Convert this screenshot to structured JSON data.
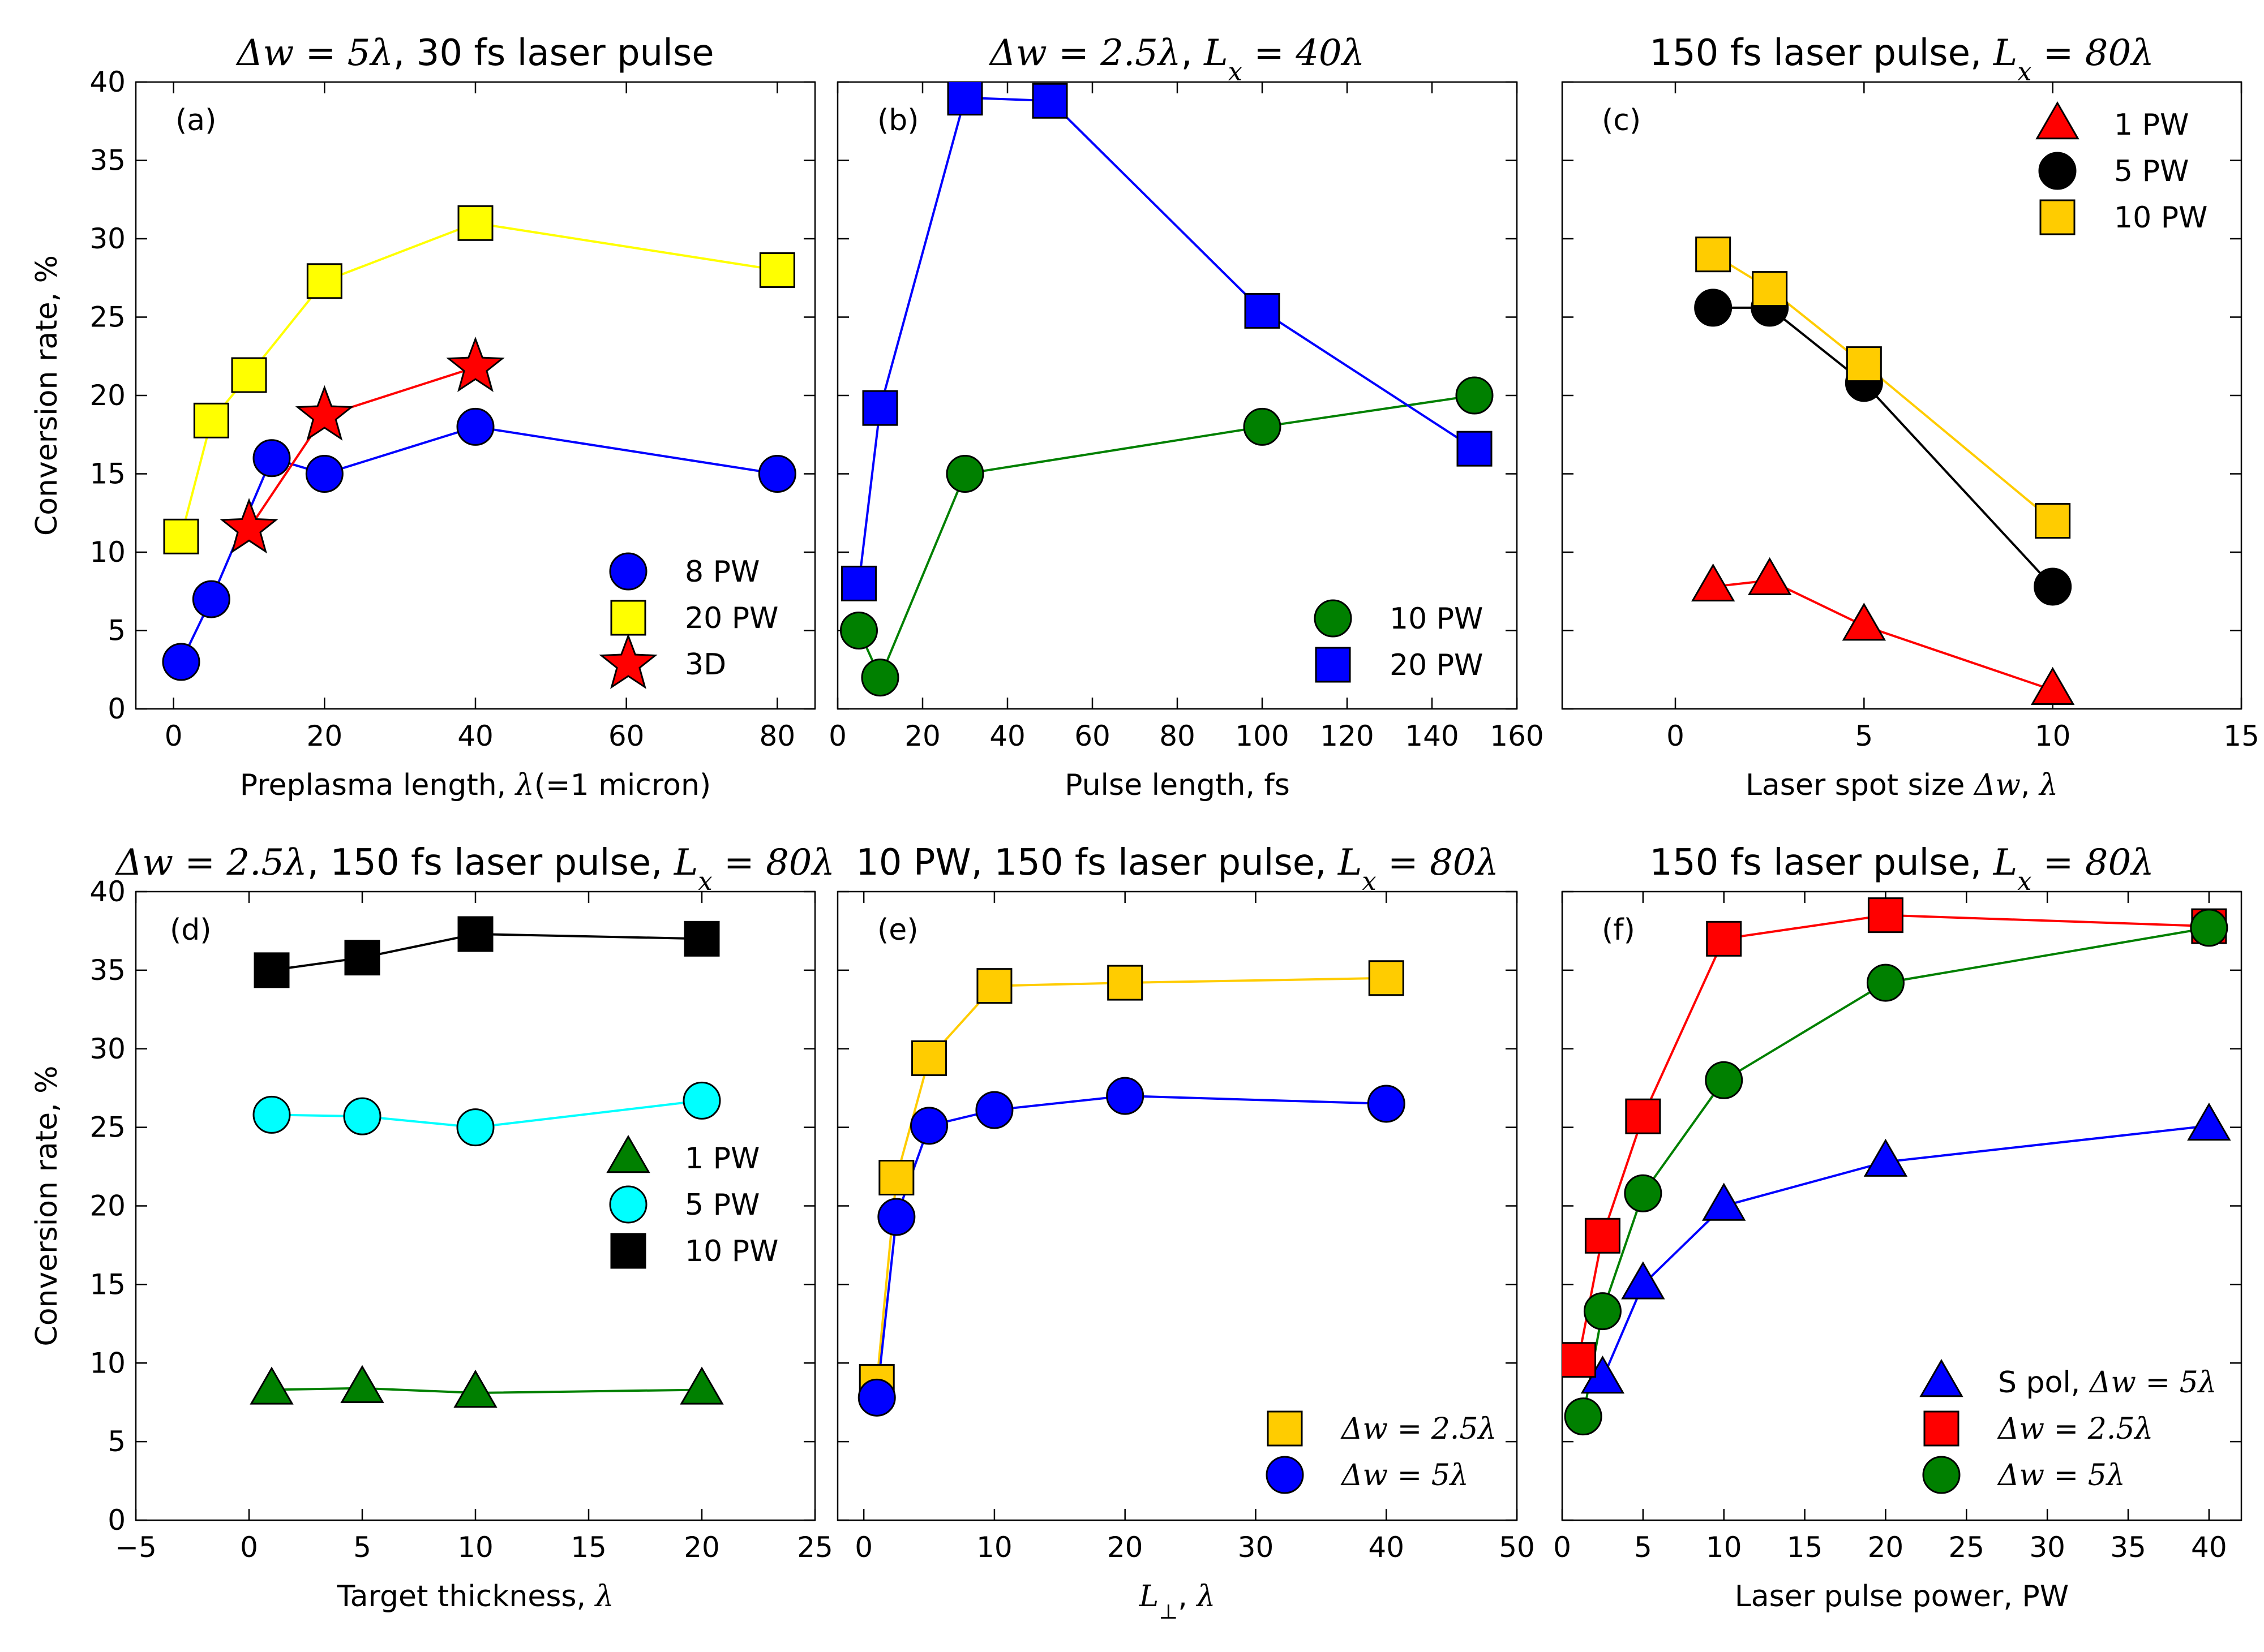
{
  "figure": {
    "ylabel": "Conversion rate, %"
  },
  "chart_data": [
    {
      "id": "a",
      "type": "line",
      "panel_label": "(a)",
      "title": "Δw = 5λ, 30 fs laser pulse",
      "xlabel": "Preplasma length, λ(=1 micron)",
      "ylabel": "Conversion rate, %",
      "xlim": [
        -5,
        85
      ],
      "ylim": [
        0,
        40
      ],
      "xticks": [
        0,
        20,
        40,
        60,
        80
      ],
      "yticks": [
        0,
        5,
        10,
        15,
        20,
        25,
        30,
        35,
        40
      ],
      "legend_position": "lower-right",
      "series": [
        {
          "name": "8 PW",
          "marker": "circle",
          "color": "#0000ff",
          "line": "#0000ff",
          "x": [
            1,
            5,
            13,
            20,
            40,
            80
          ],
          "y": [
            3,
            7,
            16,
            15,
            18,
            15
          ]
        },
        {
          "name": "20 PW",
          "marker": "square",
          "color": "#ffff00",
          "line": "#ffff00",
          "x": [
            1,
            5,
            10,
            20,
            40,
            80
          ],
          "y": [
            11,
            18.4,
            21.3,
            27.3,
            31,
            28
          ]
        },
        {
          "name": "3D",
          "marker": "star",
          "color": "#ff0000",
          "line": "#ff0000",
          "x": [
            10,
            20,
            40
          ],
          "y": [
            11.5,
            18.7,
            21.8
          ]
        }
      ]
    },
    {
      "id": "b",
      "type": "line",
      "panel_label": "(b)",
      "title": "Δw = 2.5λ, Lx = 40λ",
      "xlabel": "Pulse length, fs",
      "ylabel": "",
      "xlim": [
        0,
        160
      ],
      "ylim": [
        0,
        40
      ],
      "xticks": [
        0,
        20,
        40,
        60,
        80,
        100,
        120,
        140,
        160
      ],
      "yticks": [
        0,
        5,
        10,
        15,
        20,
        25,
        30,
        35,
        40
      ],
      "legend_position": "lower-right",
      "series": [
        {
          "name": "10 PW",
          "marker": "circle",
          "color": "#008000",
          "line": "#008000",
          "x": [
            5,
            10,
            30,
            100,
            150
          ],
          "y": [
            5,
            2,
            15,
            18,
            20
          ]
        },
        {
          "name": "20 PW",
          "marker": "square",
          "color": "#0000ff",
          "line": "#0000ff",
          "x": [
            5,
            10,
            30,
            50,
            100,
            150
          ],
          "y": [
            8,
            19.2,
            39,
            38.8,
            25.4,
            16.6
          ]
        }
      ]
    },
    {
      "id": "c",
      "type": "line",
      "panel_label": "(c)",
      "title": "150 fs laser pulse, Lx = 80λ",
      "xlabel": "Laser spot size Δw, λ",
      "ylabel": "",
      "xlim": [
        -3,
        15
      ],
      "ylim": [
        0,
        40
      ],
      "xticks": [
        0,
        5,
        10,
        15
      ],
      "yticks": [
        0,
        5,
        10,
        15,
        20,
        25,
        30,
        35,
        40
      ],
      "legend_position": "upper-right",
      "series": [
        {
          "name": "1 PW",
          "marker": "triangle",
          "color": "#ff0000",
          "line": "#ff0000",
          "x": [
            1,
            2.5,
            5,
            10
          ],
          "y": [
            7.8,
            8.2,
            5.3,
            1.2
          ]
        },
        {
          "name": "5 PW",
          "marker": "circle",
          "color": "#000000",
          "line": "#000000",
          "x": [
            1,
            2.5,
            5,
            10
          ],
          "y": [
            25.6,
            25.6,
            20.8,
            7.8
          ]
        },
        {
          "name": "10 PW",
          "marker": "square",
          "color": "#ffcc00",
          "line": "#ffcc00",
          "x": [
            1,
            2.5,
            5,
            10
          ],
          "y": [
            29,
            26.8,
            22,
            12
          ]
        }
      ]
    },
    {
      "id": "d",
      "type": "line",
      "panel_label": "(d)",
      "title": "Δw = 2.5λ, 150 fs laser pulse, Lx = 80λ",
      "xlabel": "Target thickness, λ",
      "ylabel": "Conversion rate, %",
      "xlim": [
        -5,
        25
      ],
      "ylim": [
        0,
        40
      ],
      "xticks": [
        -5,
        0,
        5,
        10,
        15,
        20,
        25
      ],
      "yticks": [
        0,
        5,
        10,
        15,
        20,
        25,
        30,
        35,
        40
      ],
      "legend_position": "center-right",
      "series": [
        {
          "name": "1 PW",
          "marker": "triangle",
          "color": "#008000",
          "line": "#008000",
          "x": [
            1,
            5,
            10,
            20
          ],
          "y": [
            8.3,
            8.4,
            8.1,
            8.3
          ]
        },
        {
          "name": "5 PW",
          "marker": "circle",
          "color": "#00ffff",
          "line": "#00ffff",
          "x": [
            1,
            5,
            10,
            20
          ],
          "y": [
            25.8,
            25.7,
            25,
            26.7
          ]
        },
        {
          "name": "10 PW",
          "marker": "square",
          "color": "#000000",
          "line": "#000000",
          "x": [
            1,
            5,
            10,
            20
          ],
          "y": [
            35,
            35.8,
            37.3,
            37
          ]
        }
      ]
    },
    {
      "id": "e",
      "type": "line",
      "panel_label": "(e)",
      "title": "10 PW, 150 fs laser pulse, Lx = 80λ",
      "xlabel": "L⊥, λ",
      "ylabel": "",
      "xlim": [
        -2,
        50
      ],
      "ylim": [
        0,
        40
      ],
      "xticks": [
        0,
        10,
        20,
        30,
        40,
        50
      ],
      "yticks": [
        0,
        5,
        10,
        15,
        20,
        25,
        30,
        35,
        40
      ],
      "legend_position": "lower-right",
      "series": [
        {
          "name": "Δw = 2.5λ",
          "marker": "square",
          "color": "#ffcc00",
          "line": "#ffcc00",
          "x": [
            1,
            2.5,
            5,
            10,
            20,
            40
          ],
          "y": [
            8.8,
            21.8,
            29.4,
            34,
            34.2,
            34.5
          ]
        },
        {
          "name": "Δw = 5λ",
          "marker": "circle",
          "color": "#0000ff",
          "line": "#0000ff",
          "x": [
            1,
            2.5,
            5,
            10,
            20,
            40
          ],
          "y": [
            7.8,
            19.3,
            25.1,
            26.1,
            27,
            26.5
          ]
        }
      ]
    },
    {
      "id": "f",
      "type": "line",
      "panel_label": "(f)",
      "title": "150 fs laser pulse, Lx = 80λ",
      "xlabel": "Laser pulse power, PW",
      "ylabel": "",
      "xlim": [
        0,
        42
      ],
      "ylim": [
        0,
        40
      ],
      "xticks": [
        0,
        5,
        10,
        15,
        20,
        25,
        30,
        35,
        40
      ],
      "yticks": [
        0,
        5,
        10,
        15,
        20,
        25,
        30,
        35,
        40
      ],
      "legend_position": "lower-right",
      "series": [
        {
          "name": "S pol, Δw = 5λ",
          "marker": "triangle",
          "color": "#0000ff",
          "line": "#0000ff",
          "x": [
            2.5,
            5,
            10,
            20,
            40
          ],
          "y": [
            9,
            15,
            20,
            22.8,
            25.1
          ]
        },
        {
          "name": "Δw = 2.5λ",
          "marker": "square",
          "color": "#ff0000",
          "line": "#ff0000",
          "x": [
            1,
            2.5,
            5,
            10,
            20,
            40
          ],
          "y": [
            10.2,
            18.1,
            25.7,
            37,
            38.5,
            37.8
          ]
        },
        {
          "name": "Δw = 5λ",
          "marker": "circle",
          "color": "#008000",
          "line": "#008000",
          "x": [
            1.3,
            2.5,
            5,
            10,
            20,
            40
          ],
          "y": [
            6.6,
            13.3,
            20.8,
            28,
            34.2,
            37.7
          ]
        }
      ]
    }
  ]
}
